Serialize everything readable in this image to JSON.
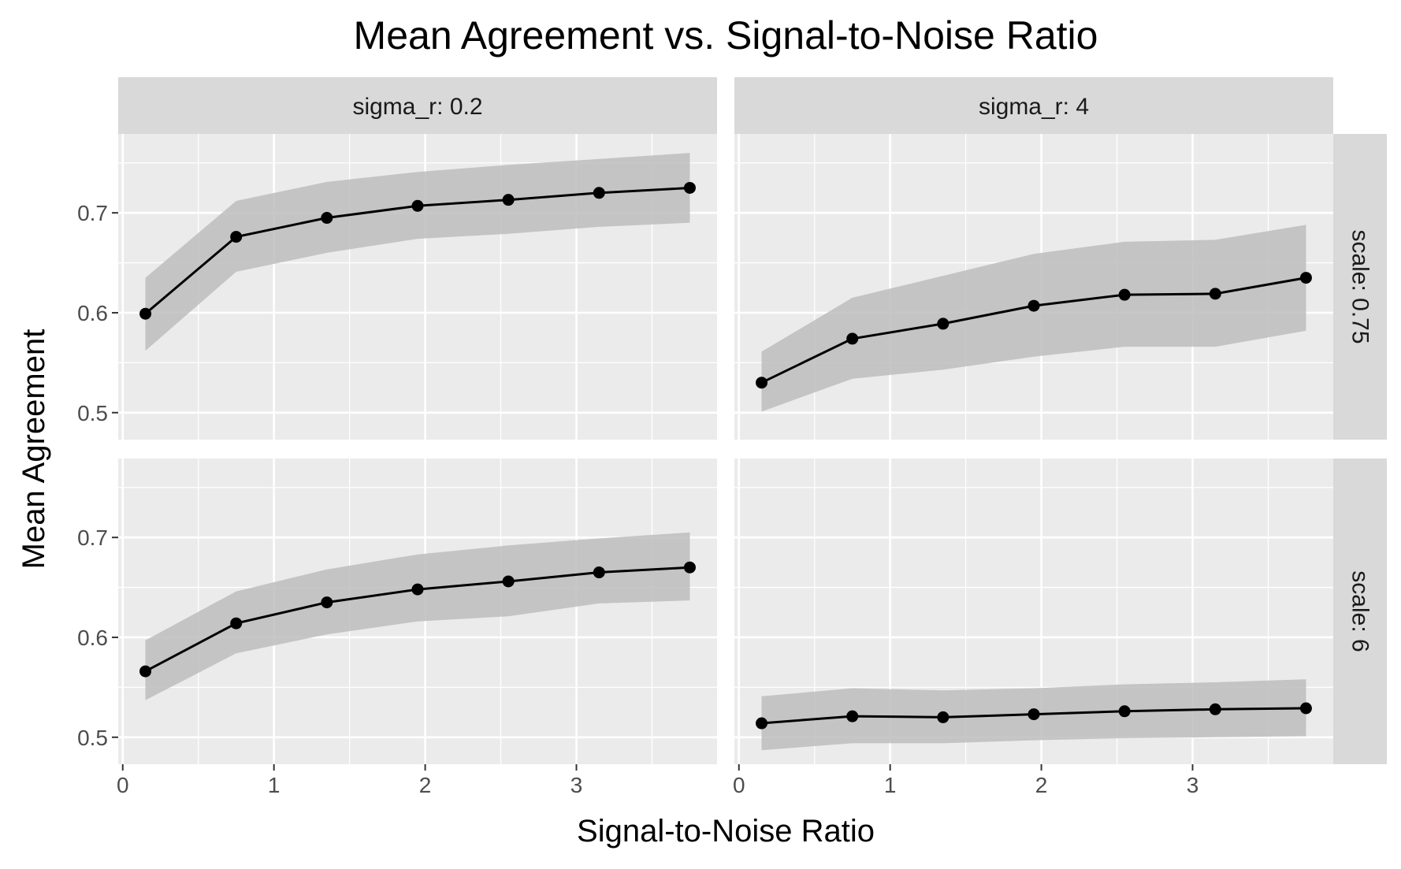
{
  "chart_data": {
    "type": "line",
    "title": "Mean Agreement vs. Signal-to-Noise Ratio",
    "xlabel": "Signal-to-Noise Ratio",
    "ylabel": "Mean Agreement",
    "xlim": [
      -0.03,
      3.93
    ],
    "ylim": [
      0.473,
      0.779
    ],
    "x_ticks": [
      0,
      1,
      2,
      3
    ],
    "y_ticks": [
      0.5,
      0.6,
      0.7
    ],
    "grid": true,
    "facet_cols": [
      "sigma_r: 0.2",
      "sigma_r: 4"
    ],
    "facet_rows": [
      "scale: 0.75",
      "scale: 6"
    ],
    "x": [
      0.15,
      0.75,
      1.35,
      1.95,
      2.55,
      3.15,
      3.75
    ],
    "panels": [
      {
        "col": "sigma_r: 0.2",
        "row": "scale: 0.75",
        "mean": [
          0.599,
          0.676,
          0.695,
          0.707,
          0.713,
          0.72,
          0.725
        ],
        "lower": [
          0.562,
          0.641,
          0.66,
          0.674,
          0.679,
          0.686,
          0.69
        ],
        "upper": [
          0.635,
          0.712,
          0.731,
          0.741,
          0.748,
          0.754,
          0.76
        ]
      },
      {
        "col": "sigma_r: 4",
        "row": "scale: 0.75",
        "mean": [
          0.53,
          0.574,
          0.589,
          0.607,
          0.618,
          0.619,
          0.635
        ],
        "lower": [
          0.501,
          0.534,
          0.543,
          0.556,
          0.566,
          0.566,
          0.582
        ],
        "upper": [
          0.561,
          0.615,
          0.637,
          0.659,
          0.671,
          0.673,
          0.688
        ]
      },
      {
        "col": "sigma_r: 0.2",
        "row": "scale: 6",
        "mean": [
          0.566,
          0.614,
          0.635,
          0.648,
          0.656,
          0.665,
          0.67
        ],
        "lower": [
          0.537,
          0.584,
          0.603,
          0.616,
          0.621,
          0.634,
          0.637
        ],
        "upper": [
          0.597,
          0.646,
          0.668,
          0.683,
          0.692,
          0.699,
          0.705
        ]
      },
      {
        "col": "sigma_r: 4",
        "row": "scale: 6",
        "mean": [
          0.514,
          0.521,
          0.52,
          0.523,
          0.526,
          0.528,
          0.529
        ],
        "lower": [
          0.487,
          0.494,
          0.494,
          0.497,
          0.499,
          0.5,
          0.501
        ],
        "upper": [
          0.541,
          0.549,
          0.547,
          0.549,
          0.553,
          0.555,
          0.558
        ]
      }
    ]
  },
  "colors": {
    "panel_bg": "#ebebeb",
    "grid": "#ffffff",
    "strip_bg": "#d9d9d9",
    "ribbon": "#bdbdbd",
    "line": "#000000"
  }
}
